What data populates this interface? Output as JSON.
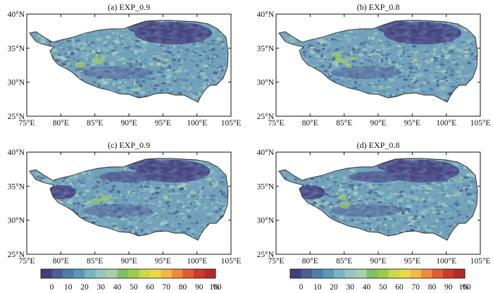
{
  "panels": [
    {
      "id": "a",
      "title": "(a) EXP_0.9",
      "pattern": 0
    },
    {
      "id": "b",
      "title": "(b) EXP_0.8",
      "pattern": 1
    },
    {
      "id": "c",
      "title": "(c) EXP_0.9",
      "pattern": 2
    },
    {
      "id": "d",
      "title": "(d) EXP_0.8",
      "pattern": 3
    }
  ],
  "lon_ticks": [
    "75°E",
    "80°E",
    "85°E",
    "90°E",
    "95°E",
    "100°E",
    "105°E"
  ],
  "lat_ticks": [
    "40°N",
    "35°N",
    "30°N",
    "25°N"
  ],
  "extent": {
    "lon": [
      75,
      105
    ],
    "lat": [
      25,
      40
    ]
  },
  "colorbar": {
    "labels": [
      "0",
      "10",
      "20",
      "30",
      "40",
      "50",
      "60",
      "70",
      "80",
      "90",
      "100"
    ],
    "unit": "%",
    "colors": [
      "#433f7c",
      "#4a5f93",
      "#4d7ea6",
      "#5a98b6",
      "#78b3bf",
      "#97c6c0",
      "#a9cfa8",
      "#7fbf66",
      "#9ccb4a",
      "#c9d94a",
      "#ecd94a",
      "#f4b845",
      "#ee8a3d",
      "#e25a33",
      "#cc3a2c",
      "#b22a27"
    ]
  }
}
